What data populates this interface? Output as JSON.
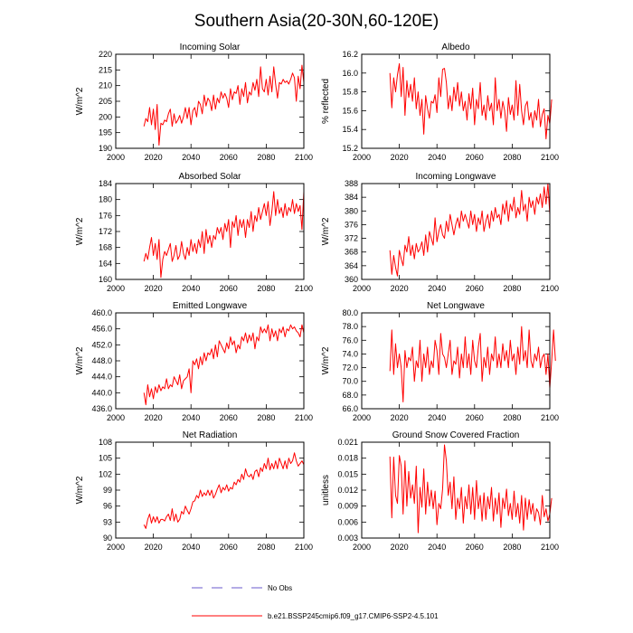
{
  "figure_title": "Southern Asia(20-30N,60-120E)",
  "legend": [
    {
      "label": "No Obs",
      "color": "#6a5acd",
      "style": "dashed"
    },
    {
      "label": "b.e21.BSSP245cmip6.f09_g17.CMIP6-SSP2-4.5.101",
      "color": "#ff0000",
      "style": "solid"
    }
  ],
  "colors": {
    "series": "#ff0000",
    "axis": "#000000",
    "obs": "#6a5acd"
  },
  "chart_data": [
    {
      "type": "line",
      "title": "Incoming Solar",
      "ylabel": "W/m^2",
      "xlim": [
        2000,
        2100
      ],
      "ylim": [
        190,
        220
      ],
      "xticks": [
        2000,
        2020,
        2040,
        2060,
        2080,
        2100
      ],
      "yticks": [
        190,
        195,
        200,
        205,
        210,
        215,
        220
      ],
      "yticklabels": [
        "190",
        "195",
        "200",
        "205",
        "210",
        "215",
        "220"
      ],
      "x_start": 2015,
      "values": [
        197,
        199.5,
        198.5,
        203,
        197.5,
        202.5,
        196,
        204,
        191,
        198,
        197.5,
        199,
        198.5,
        201,
        202.5,
        197,
        201,
        198,
        199,
        200.5,
        198,
        200,
        203,
        199.5,
        203,
        197.5,
        202,
        203,
        200,
        205,
        204,
        201,
        207,
        203.5,
        206,
        205,
        202,
        207,
        202.5,
        206,
        204.5,
        208,
        206,
        207.5,
        206,
        203,
        209,
        205.5,
        208,
        207.5,
        210,
        204,
        209,
        206.5,
        211,
        204.5,
        208,
        207,
        211,
        208.5,
        212,
        206.5,
        216,
        209,
        208,
        212,
        207,
        213,
        208,
        216,
        210.5,
        206,
        211,
        210.5,
        212,
        211,
        211.5,
        210.5,
        212,
        214,
        212.5,
        205,
        213,
        209,
        216.5,
        211
      ]
    },
    {
      "type": "line",
      "title": "Albedo",
      "ylabel": "% reflected",
      "xlim": [
        2000,
        2100
      ],
      "ylim": [
        15.2,
        16.2
      ],
      "xticks": [
        2000,
        2020,
        2040,
        2060,
        2080,
        2100
      ],
      "yticks": [
        15.2,
        15.4,
        15.6,
        15.8,
        16.0,
        16.2
      ],
      "yticklabels": [
        "15.2",
        "15.4",
        "15.6",
        "15.8",
        "16.0",
        "16.2"
      ],
      "x_start": 2015,
      "values": [
        16.0,
        15.63,
        15.95,
        15.8,
        15.98,
        16.1,
        15.75,
        16.06,
        15.55,
        15.92,
        15.74,
        15.88,
        15.7,
        15.95,
        15.62,
        15.8,
        15.55,
        15.72,
        15.35,
        15.76,
        15.62,
        15.52,
        15.7,
        15.68,
        15.77,
        15.58,
        15.95,
        15.75,
        16.04,
        16.05,
        15.9,
        15.62,
        15.76,
        15.6,
        15.85,
        15.7,
        15.9,
        15.65,
        15.8,
        15.6,
        15.7,
        15.5,
        15.78,
        15.62,
        15.84,
        15.45,
        15.72,
        15.62,
        15.9,
        15.55,
        15.66,
        15.5,
        15.76,
        15.6,
        15.68,
        15.45,
        15.95,
        15.6,
        15.72,
        15.52,
        15.7,
        15.6,
        15.38,
        15.74,
        15.56,
        15.66,
        15.5,
        15.92,
        15.55,
        15.88,
        15.6,
        15.45,
        15.65,
        15.7,
        15.5,
        15.58,
        15.42,
        15.6,
        15.5,
        15.72,
        15.43,
        15.56,
        15.62,
        15.3,
        15.55,
        15.46,
        15.72
      ]
    },
    {
      "type": "line",
      "title": "Absorbed Solar",
      "ylabel": "W/m^2",
      "xlim": [
        2000,
        2100
      ],
      "ylim": [
        160,
        184
      ],
      "xticks": [
        2000,
        2020,
        2040,
        2060,
        2080,
        2100
      ],
      "yticks": [
        160,
        164,
        168,
        172,
        176,
        180,
        184
      ],
      "yticklabels": [
        "160",
        "164",
        "168",
        "172",
        "176",
        "180",
        "184"
      ],
      "x_start": 2015,
      "values": [
        164.5,
        166.5,
        165,
        168,
        170.5,
        166,
        169,
        165,
        170,
        160.5,
        165,
        167,
        166,
        167.5,
        169,
        164.5,
        166,
        168.5,
        165,
        166,
        169.5,
        166.5,
        165,
        168,
        166,
        170,
        167,
        169,
        166.5,
        170,
        168,
        172,
        166.5,
        172.5,
        169,
        171,
        168,
        171,
        170,
        173,
        171.5,
        173,
        170,
        174,
        172,
        175,
        168,
        174.5,
        173,
        176,
        171,
        175,
        173,
        175,
        170.5,
        175,
        173,
        177,
        172,
        176,
        174.5,
        178,
        175,
        177,
        179,
        176,
        179.5,
        173.5,
        177,
        182,
        176,
        180,
        176.5,
        178,
        175.5,
        179,
        176,
        178,
        177,
        180,
        176.5,
        179,
        177,
        178.5,
        172.5,
        182
      ]
    },
    {
      "type": "line",
      "title": "Incoming Longwave",
      "ylabel": "W/m^2",
      "xlim": [
        2000,
        2100
      ],
      "ylim": [
        360,
        388
      ],
      "xticks": [
        2000,
        2020,
        2040,
        2060,
        2080,
        2100
      ],
      "yticks": [
        360,
        364,
        368,
        372,
        376,
        380,
        384,
        388
      ],
      "yticklabels": [
        "360",
        "364",
        "368",
        "372",
        "376",
        "380",
        "384",
        "388"
      ],
      "x_start": 2015,
      "values": [
        368.5,
        361.5,
        367,
        363.5,
        361,
        368.5,
        366,
        364,
        370,
        368,
        372.5,
        367,
        370,
        366,
        370.5,
        368,
        369,
        371,
        367,
        373,
        368,
        374,
        372,
        370,
        378,
        371,
        374,
        376,
        373,
        372,
        377,
        374,
        379,
        376,
        373,
        376,
        378,
        375,
        380,
        377,
        379,
        377,
        375,
        380,
        376,
        379,
        374,
        378,
        376,
        380,
        374,
        377,
        379,
        375,
        380,
        377,
        381,
        378,
        379,
        376,
        382,
        379,
        383,
        377,
        382,
        380,
        384,
        378,
        381,
        379,
        386,
        380,
        382,
        377,
        384,
        381,
        383,
        379,
        384,
        382,
        385,
        381,
        387,
        382,
        388,
        379
      ]
    },
    {
      "type": "line",
      "title": "Emitted Longwave",
      "ylabel": "W/m^2",
      "xlim": [
        2000,
        2100
      ],
      "ylim": [
        436,
        460
      ],
      "xticks": [
        2000,
        2020,
        2040,
        2060,
        2080,
        2100
      ],
      "yticks": [
        436,
        440,
        444,
        448,
        452,
        456,
        460
      ],
      "yticklabels": [
        "436.0",
        "440.0",
        "444.0",
        "448.0",
        "452.0",
        "456.0",
        "460.0"
      ],
      "x_start": 2015,
      "values": [
        440,
        437,
        442,
        439,
        441,
        438.5,
        441.5,
        440,
        442,
        440.5,
        441.5,
        441,
        443.5,
        441,
        442,
        441.5,
        444,
        443,
        442,
        444.5,
        441,
        443,
        443.5,
        444,
        446,
        440,
        448,
        447,
        448.5,
        446,
        449,
        447,
        450,
        448,
        450,
        449.5,
        451,
        448.5,
        452,
        449,
        453,
        452,
        451,
        450,
        452.5,
        451,
        454,
        452,
        453,
        450,
        452,
        451,
        454,
        453,
        455,
        452.5,
        454.5,
        453,
        455,
        451,
        454,
        453,
        456.5,
        455,
        456,
        455,
        457,
        453,
        456,
        454,
        455.5,
        453,
        456,
        455,
        456.5,
        454,
        456,
        455.5,
        457,
        456,
        456.5,
        455.5,
        455,
        454,
        457,
        455
      ]
    },
    {
      "type": "line",
      "title": "Net Longwave",
      "ylabel": "W/m^2",
      "xlim": [
        2000,
        2100
      ],
      "ylim": [
        66,
        80
      ],
      "xticks": [
        2000,
        2020,
        2040,
        2060,
        2080,
        2100
      ],
      "yticks": [
        66,
        68,
        70,
        72,
        74,
        76,
        78,
        80
      ],
      "yticklabels": [
        "66.0",
        "68.0",
        "70.0",
        "72.0",
        "74.0",
        "76.0",
        "78.0",
        "80.0"
      ],
      "x_start": 2015,
      "values": [
        71.5,
        77.5,
        71,
        75.5,
        72,
        74,
        72,
        67,
        74.5,
        72,
        73.5,
        73,
        75,
        70,
        73,
        72,
        76,
        70,
        74,
        72,
        75,
        71,
        73,
        72,
        76,
        74.5,
        71,
        77,
        74,
        73.5,
        72,
        74,
        76,
        71,
        73,
        72.5,
        75,
        70.5,
        74,
        72,
        76.5,
        72,
        74,
        71,
        76,
        73,
        72,
        75,
        77,
        70,
        73.5,
        72,
        75,
        71,
        74,
        73,
        76.5,
        72,
        74,
        72,
        75.5,
        73,
        74.5,
        72,
        76,
        73,
        74,
        71,
        75,
        72.5,
        78,
        73,
        74.5,
        72,
        77.5,
        73,
        72,
        74,
        73,
        75,
        72,
        73.5,
        74,
        71,
        74,
        69,
        73,
        77.5,
        73
      ]
    },
    {
      "type": "line",
      "title": "Net Radiation",
      "ylabel": "W/m^2",
      "xlim": [
        2000,
        2100
      ],
      "ylim": [
        90,
        108
      ],
      "xticks": [
        2000,
        2020,
        2040,
        2060,
        2080,
        2100
      ],
      "yticks": [
        90,
        93,
        96,
        99,
        102,
        105,
        108
      ],
      "yticklabels": [
        "90",
        "93",
        "96",
        "99",
        "102",
        "105",
        "108"
      ],
      "x_start": 2015,
      "values": [
        92.5,
        91.8,
        93.5,
        94.5,
        92.8,
        94,
        93,
        94,
        92.8,
        93.5,
        93.5,
        93.2,
        94,
        94.5,
        93.3,
        95.5,
        93.2,
        94.5,
        93,
        93.5,
        95,
        94.5,
        96,
        95.2,
        94.5,
        95.5,
        96.8,
        97,
        98,
        97.5,
        99,
        97.8,
        98.5,
        98,
        99,
        98,
        99,
        97.5,
        98.2,
        99.2,
        100,
        98.5,
        99.5,
        99,
        100,
        98.8,
        99.5,
        99.2,
        100.5,
        100,
        101,
        100.5,
        102,
        101,
        103,
        101.8,
        101.5,
        102,
        101,
        102.5,
        102.8,
        101.5,
        103.2,
        102.5,
        104,
        103,
        105,
        102.8,
        104,
        103,
        104.5,
        103,
        105,
        104,
        103,
        104.5,
        103,
        105,
        104,
        104.5,
        106,
        104.5,
        103.5,
        104,
        104.5,
        103.8
      ]
    },
    {
      "type": "line",
      "title": "Ground Snow Covered Fraction",
      "ylabel": "unitless",
      "xlim": [
        2000,
        2100
      ],
      "ylim": [
        0.003,
        0.021
      ],
      "xticks": [
        2000,
        2020,
        2040,
        2060,
        2080,
        2100
      ],
      "yticks": [
        0.003,
        0.006,
        0.009,
        0.012,
        0.015,
        0.018,
        0.021
      ],
      "yticklabels": [
        "0.003",
        "0.006",
        "0.009",
        "0.012",
        "0.015",
        "0.018",
        "0.021"
      ],
      "x_start": 2015,
      "values": [
        0.0183,
        0.0068,
        0.0182,
        0.011,
        0.0095,
        0.0185,
        0.0165,
        0.0075,
        0.0175,
        0.009,
        0.0155,
        0.0105,
        0.013,
        0.0095,
        0.0165,
        0.004,
        0.0125,
        0.0088,
        0.016,
        0.0075,
        0.0135,
        0.009,
        0.012,
        0.0085,
        0.0118,
        0.0055,
        0.0095,
        0.0085,
        0.0122,
        0.0205,
        0.0175,
        0.011,
        0.0135,
        0.0085,
        0.0145,
        0.0065,
        0.0105,
        0.0085,
        0.0125,
        0.0058,
        0.0108,
        0.0085,
        0.013,
        0.0075,
        0.0125,
        0.0065,
        0.0138,
        0.0085,
        0.011,
        0.0062,
        0.0115,
        0.0065,
        0.0108,
        0.0085,
        0.0125,
        0.0062,
        0.0105,
        0.0075,
        0.0115,
        0.005,
        0.0105,
        0.0085,
        0.0122,
        0.0072,
        0.0095,
        0.0065,
        0.0118,
        0.007,
        0.0095,
        0.0058,
        0.011,
        0.0045,
        0.0105,
        0.0065,
        0.0102,
        0.0075,
        0.0095,
        0.0062,
        0.0085,
        0.0078,
        0.0055,
        0.011,
        0.007,
        0.0085,
        0.0062,
        0.0075,
        0.0105
      ]
    }
  ]
}
